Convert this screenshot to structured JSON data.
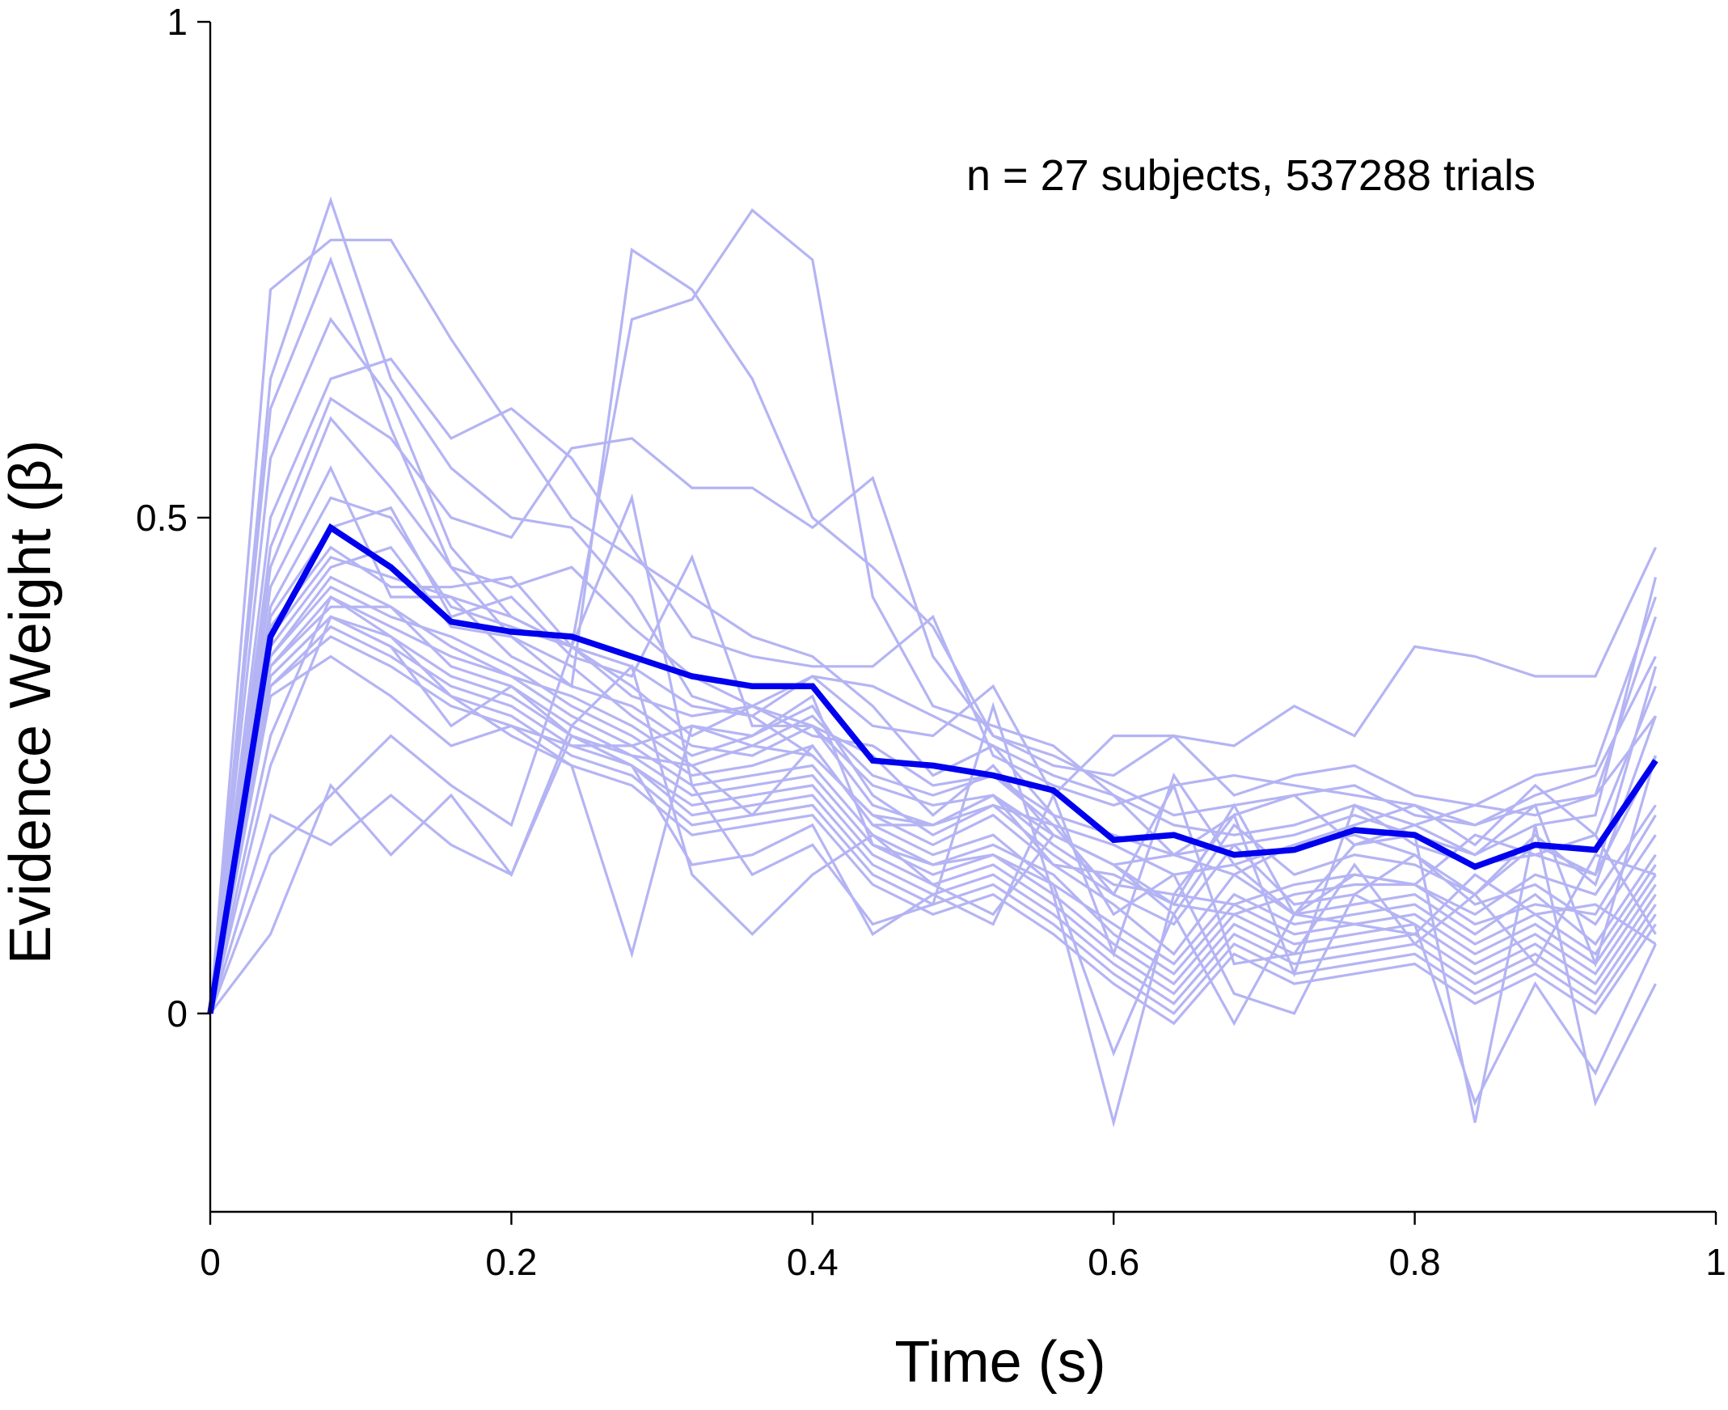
{
  "chart_data": {
    "type": "line",
    "xlabel": "Time (s)",
    "ylabel": "Evidence Weight (β)",
    "annotation": "n = 27 subjects, 537288 trials",
    "xlim": [
      0,
      1
    ],
    "ylim": [
      -0.2,
      1
    ],
    "x_ticks": [
      0,
      0.2,
      0.4,
      0.6,
      0.8,
      1
    ],
    "x_tick_labels": [
      "0",
      "0.2",
      "0.4",
      "0.6",
      "0.8",
      "1"
    ],
    "y_ticks": [
      0,
      0.5,
      1
    ],
    "y_tick_labels": [
      "0",
      "0.5",
      "1"
    ],
    "grid": false,
    "legend": "none",
    "colors": {
      "subjects": "#b4b4f4",
      "mean": "#0000ee",
      "axes": "#000000"
    },
    "x": [
      0,
      0.04,
      0.08,
      0.12,
      0.16,
      0.2,
      0.24,
      0.28,
      0.32,
      0.36,
      0.4,
      0.44,
      0.48,
      0.52,
      0.56,
      0.6,
      0.64,
      0.68,
      0.72,
      0.76,
      0.8,
      0.84,
      0.88,
      0.92,
      0.96
    ],
    "mean": [
      0,
      0.38,
      0.49,
      0.45,
      0.395,
      0.385,
      0.38,
      0.36,
      0.34,
      0.33,
      0.33,
      0.255,
      0.25,
      0.24,
      0.225,
      0.175,
      0.18,
      0.16,
      0.165,
      0.185,
      0.18,
      0.148,
      0.17,
      0.165,
      0.255
    ],
    "subjects": [
      [
        0,
        0.73,
        0.78,
        0.78,
        0.68,
        0.59,
        0.5,
        0.46,
        0.42,
        0.38,
        0.36,
        0.31,
        0.24,
        0.27,
        0.2,
        0.18,
        0.16,
        0.17,
        0.18,
        0.2,
        0.18,
        0.16,
        0.19,
        0.2,
        0.44
      ],
      [
        0,
        0.64,
        0.82,
        0.64,
        0.55,
        0.5,
        0.49,
        0.42,
        0.32,
        0.3,
        0.26,
        0.2,
        0.19,
        0.22,
        0.18,
        0.15,
        0.16,
        0.14,
        0.17,
        0.18,
        0.16,
        0.12,
        0.18,
        0.13,
        0.3
      ],
      [
        0,
        0.61,
        0.76,
        0.59,
        0.45,
        0.38,
        0.33,
        0.77,
        0.73,
        0.64,
        0.5,
        0.45,
        0.39,
        0.28,
        0.26,
        0.23,
        0.2,
        0.21,
        0.22,
        0.23,
        0.2,
        0.19,
        0.21,
        0.22,
        0.4
      ],
      [
        0,
        0.56,
        0.7,
        0.62,
        0.47,
        0.4,
        0.37,
        0.7,
        0.72,
        0.81,
        0.76,
        0.42,
        0.31,
        0.29,
        0.27,
        0.22,
        0.19,
        0.18,
        0.19,
        0.21,
        0.17,
        0.15,
        0.16,
        0.14,
        0.35
      ],
      [
        0,
        0.5,
        0.64,
        0.66,
        0.58,
        0.61,
        0.56,
        0.47,
        0.38,
        0.36,
        0.35,
        0.35,
        0.4,
        0.26,
        0.23,
        0.21,
        0.23,
        0.24,
        0.23,
        0.22,
        0.21,
        0.19,
        0.22,
        0.24,
        0.36
      ],
      [
        0,
        0.47,
        0.62,
        0.58,
        0.5,
        0.48,
        0.57,
        0.58,
        0.53,
        0.53,
        0.49,
        0.54,
        0.36,
        0.28,
        0.25,
        0.24,
        0.28,
        0.22,
        0.24,
        0.25,
        0.22,
        0.21,
        0.24,
        0.25,
        0.42
      ],
      [
        0,
        0.45,
        0.6,
        0.53,
        0.45,
        0.43,
        0.45,
        0.39,
        0.34,
        0.31,
        0.34,
        0.29,
        0.28,
        0.33,
        0.22,
        0.28,
        0.28,
        0.27,
        0.31,
        0.28,
        0.37,
        0.36,
        0.34,
        0.34,
        0.47
      ],
      [
        0,
        0.43,
        0.55,
        0.42,
        0.42,
        0.4,
        0.37,
        0.32,
        0.3,
        0.31,
        0.28,
        0.27,
        0.23,
        0.24,
        0.19,
        0.17,
        0.14,
        0.15,
        0.17,
        0.19,
        0.21,
        0.17,
        0.23,
        0.18,
        0.33
      ],
      [
        0,
        0.41,
        0.52,
        0.5,
        0.41,
        0.39,
        0.37,
        0.35,
        0.31,
        0.3,
        0.34,
        0.33,
        0.3,
        0.27,
        0.24,
        0.22,
        0.16,
        0.2,
        0.22,
        0.17,
        0.19,
        0.21,
        0.2,
        0.22,
        0.3
      ],
      [
        0,
        0.4,
        0.49,
        0.51,
        0.4,
        0.42,
        0.36,
        0.34,
        0.46,
        0.29,
        0.29,
        0.26,
        0.2,
        0.25,
        0.18,
        0.15,
        0.1,
        0.19,
        0.14,
        0.16,
        0.15,
        0.12,
        0.17,
        0.14,
        0.26
      ],
      [
        0,
        0.39,
        0.47,
        0.43,
        0.43,
        0.44,
        0.37,
        0.33,
        0.28,
        0.31,
        0.29,
        0.23,
        0.21,
        0.22,
        0.17,
        0.13,
        0.12,
        0.11,
        0.13,
        0.14,
        0.13,
        0.1,
        0.14,
        0.12,
        0.21
      ],
      [
        0,
        0.38,
        0.46,
        0.44,
        0.42,
        0.36,
        0.33,
        0.31,
        0.27,
        0.26,
        0.29,
        0.21,
        0.19,
        0.22,
        0.15,
        0.14,
        0.11,
        0.1,
        0.12,
        0.13,
        0.13,
        0.09,
        0.11,
        0.1,
        0.2
      ],
      [
        0,
        0.37,
        0.45,
        0.47,
        0.39,
        0.38,
        0.35,
        0.3,
        0.26,
        0.28,
        0.31,
        0.22,
        0.18,
        0.21,
        0.16,
        0.12,
        0.09,
        0.17,
        0.11,
        0.12,
        0.16,
        0.11,
        0.13,
        0.09,
        0.18
      ],
      [
        0,
        0.36,
        0.44,
        0.41,
        0.37,
        0.34,
        0.32,
        0.29,
        0.25,
        0.27,
        0.26,
        0.2,
        0.17,
        0.2,
        0.15,
        0.11,
        0.06,
        0.14,
        0.1,
        0.11,
        0.12,
        0.08,
        0.12,
        0.07,
        0.16
      ],
      [
        0,
        0.36,
        0.43,
        0.4,
        0.38,
        0.35,
        0.31,
        0.28,
        0.24,
        0.25,
        0.27,
        0.19,
        0.16,
        0.18,
        0.13,
        0.09,
        0.05,
        0.12,
        0.09,
        0.1,
        0.11,
        0.07,
        0.1,
        0.06,
        0.15
      ],
      [
        0,
        0.35,
        0.42,
        0.39,
        0.36,
        0.34,
        0.3,
        0.27,
        0.23,
        0.24,
        0.25,
        0.18,
        0.15,
        0.17,
        0.14,
        0.08,
        0.04,
        0.11,
        0.08,
        0.09,
        0.1,
        0.06,
        0.09,
        0.05,
        0.14
      ],
      [
        0,
        0.35,
        0.41,
        0.41,
        0.35,
        0.33,
        0.29,
        0.26,
        0.22,
        0.23,
        0.24,
        0.17,
        0.14,
        0.16,
        0.12,
        0.07,
        0.03,
        0.1,
        0.07,
        0.08,
        0.09,
        0.05,
        0.08,
        0.04,
        0.13
      ],
      [
        0,
        0.34,
        0.4,
        0.38,
        0.34,
        0.32,
        0.28,
        0.25,
        0.21,
        0.22,
        0.23,
        0.16,
        0.13,
        0.15,
        0.11,
        0.06,
        0.02,
        0.09,
        0.06,
        0.07,
        0.08,
        0.04,
        0.07,
        0.03,
        0.12
      ],
      [
        0,
        0.34,
        0.4,
        0.37,
        0.33,
        0.31,
        0.27,
        0.25,
        0.2,
        0.21,
        0.22,
        0.15,
        0.12,
        0.14,
        0.1,
        0.05,
        0.01,
        0.08,
        0.05,
        0.06,
        0.07,
        0.03,
        0.06,
        0.02,
        0.11
      ],
      [
        0,
        0.33,
        0.39,
        0.36,
        0.32,
        0.3,
        0.26,
        0.24,
        0.19,
        0.2,
        0.21,
        0.14,
        0.11,
        0.13,
        0.09,
        0.04,
        0.0,
        0.07,
        0.04,
        0.05,
        0.06,
        0.02,
        0.05,
        0.01,
        0.1
      ],
      [
        0,
        0.33,
        0.38,
        0.35,
        0.31,
        0.29,
        0.25,
        0.23,
        0.18,
        0.19,
        0.2,
        0.13,
        0.1,
        0.12,
        0.08,
        0.03,
        -0.01,
        0.06,
        0.03,
        0.04,
        0.05,
        0.01,
        0.04,
        0.0,
        0.09
      ],
      [
        0,
        0.32,
        0.36,
        0.32,
        0.27,
        0.29,
        0.27,
        0.27,
        0.29,
        0.27,
        0.3,
        0.24,
        0.22,
        0.24,
        0.2,
        0.1,
        0.14,
        0.02,
        0.0,
        0.12,
        0.09,
        -0.09,
        0.03,
        -0.06,
        0.07
      ],
      [
        0,
        0.28,
        0.42,
        0.38,
        0.32,
        0.28,
        0.25,
        0.06,
        0.29,
        0.28,
        0.32,
        0.17,
        0.15,
        0.16,
        0.13,
        -0.04,
        0.1,
        -0.01,
        0.1,
        0.09,
        0.08,
        0.14,
        0.1,
        0.11,
        0.07
      ],
      [
        0,
        0.25,
        0.4,
        0.37,
        0.29,
        0.33,
        0.28,
        0.26,
        0.25,
        0.2,
        0.27,
        0.19,
        0.19,
        0.21,
        0.19,
        0.12,
        0.23,
        0.05,
        0.06,
        0.15,
        0.07,
        0.12,
        0.05,
        0.16,
        0.14
      ],
      [
        0,
        0.2,
        0.17,
        0.22,
        0.17,
        0.14,
        0.28,
        0.25,
        0.15,
        0.16,
        0.19,
        0.08,
        0.12,
        0.09,
        0.22,
        0.06,
        0.24,
        0.15,
        0.1,
        0.17,
        0.18,
        -0.11,
        0.19,
        -0.09,
        0.03
      ],
      [
        0,
        0.16,
        0.22,
        0.28,
        0.23,
        0.19,
        0.37,
        0.52,
        0.23,
        0.14,
        0.17,
        0.09,
        0.11,
        0.31,
        0.12,
        -0.11,
        0.12,
        0.2,
        0.04,
        0.21,
        0.19,
        0.16,
        0.21,
        0.05,
        0.26
      ],
      [
        0,
        0.08,
        0.23,
        0.16,
        0.22,
        0.14,
        0.29,
        0.35,
        0.14,
        0.08,
        0.14,
        0.18,
        0.13,
        0.1,
        0.18,
        0.15,
        0.11,
        0.21,
        0.1,
        0.14,
        0.13,
        0.18,
        0.16,
        0.18,
        0.08
      ]
    ]
  }
}
